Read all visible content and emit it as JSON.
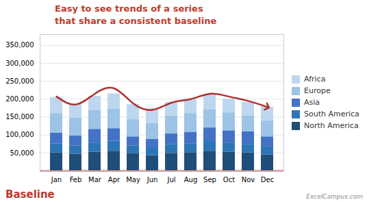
{
  "chart_data": {
    "type": "bar",
    "stacked": true,
    "categories": [
      "Jan",
      "Feb",
      "Mar",
      "Apr",
      "May",
      "Jun",
      "Jul",
      "Aug",
      "Sep",
      "Oct",
      "Nov",
      "Dec"
    ],
    "series": [
      {
        "name": "North America",
        "color": "#1F4E79",
        "values": [
          50000,
          47000,
          52000,
          55000,
          48000,
          43000,
          49000,
          51000,
          55000,
          52000,
          50000,
          45000
        ]
      },
      {
        "name": "South America",
        "color": "#2E75B6",
        "values": [
          25000,
          23000,
          26000,
          28000,
          22000,
          20000,
          24000,
          25000,
          27000,
          26000,
          24000,
          22000
        ]
      },
      {
        "name": "Asia",
        "color": "#4472C4",
        "values": [
          30000,
          28000,
          38000,
          35000,
          25000,
          25000,
          30000,
          32000,
          38000,
          34000,
          35000,
          28000
        ]
      },
      {
        "name": "Europe",
        "color": "#9DC3E6",
        "values": [
          55000,
          50000,
          52000,
          55000,
          48000,
          45000,
          50000,
          52000,
          50000,
          50000,
          45000,
          45000
        ]
      },
      {
        "name": "Africa",
        "color": "#BDD7EE",
        "values": [
          45000,
          37000,
          40000,
          42000,
          42000,
          40000,
          38000,
          40000,
          42000,
          38000,
          37000,
          38000
        ]
      },
      {
        "type": "line",
        "color": "#B03030",
        "values": [
          207000,
          185000,
          215000,
          230000,
          188000,
          170000,
          190000,
          200000,
          215000,
          207000,
          195000,
          178000
        ]
      }
    ],
    "ylim": [
      0,
      380000
    ],
    "yticks": [
      {
        "value": 50000,
        "label": "50,000"
      },
      {
        "value": 100000,
        "label": "100,000"
      },
      {
        "value": 150000,
        "label": "150,000"
      },
      {
        "value": 200000,
        "label": "200,000"
      },
      {
        "value": 250000,
        "label": "250,000"
      },
      {
        "value": 300000,
        "label": "300,000"
      },
      {
        "value": 350000,
        "label": "350,000"
      }
    ],
    "grid": true,
    "legend": "right",
    "annotations": [
      {
        "text": "Easy to see trends of a series\nthat share a consistent baseline",
        "color": "#C0392B"
      },
      {
        "text": "Baseline",
        "color": "#C0392B"
      },
      {
        "text": "ExcelCampus.com",
        "color": "#888888"
      }
    ]
  }
}
